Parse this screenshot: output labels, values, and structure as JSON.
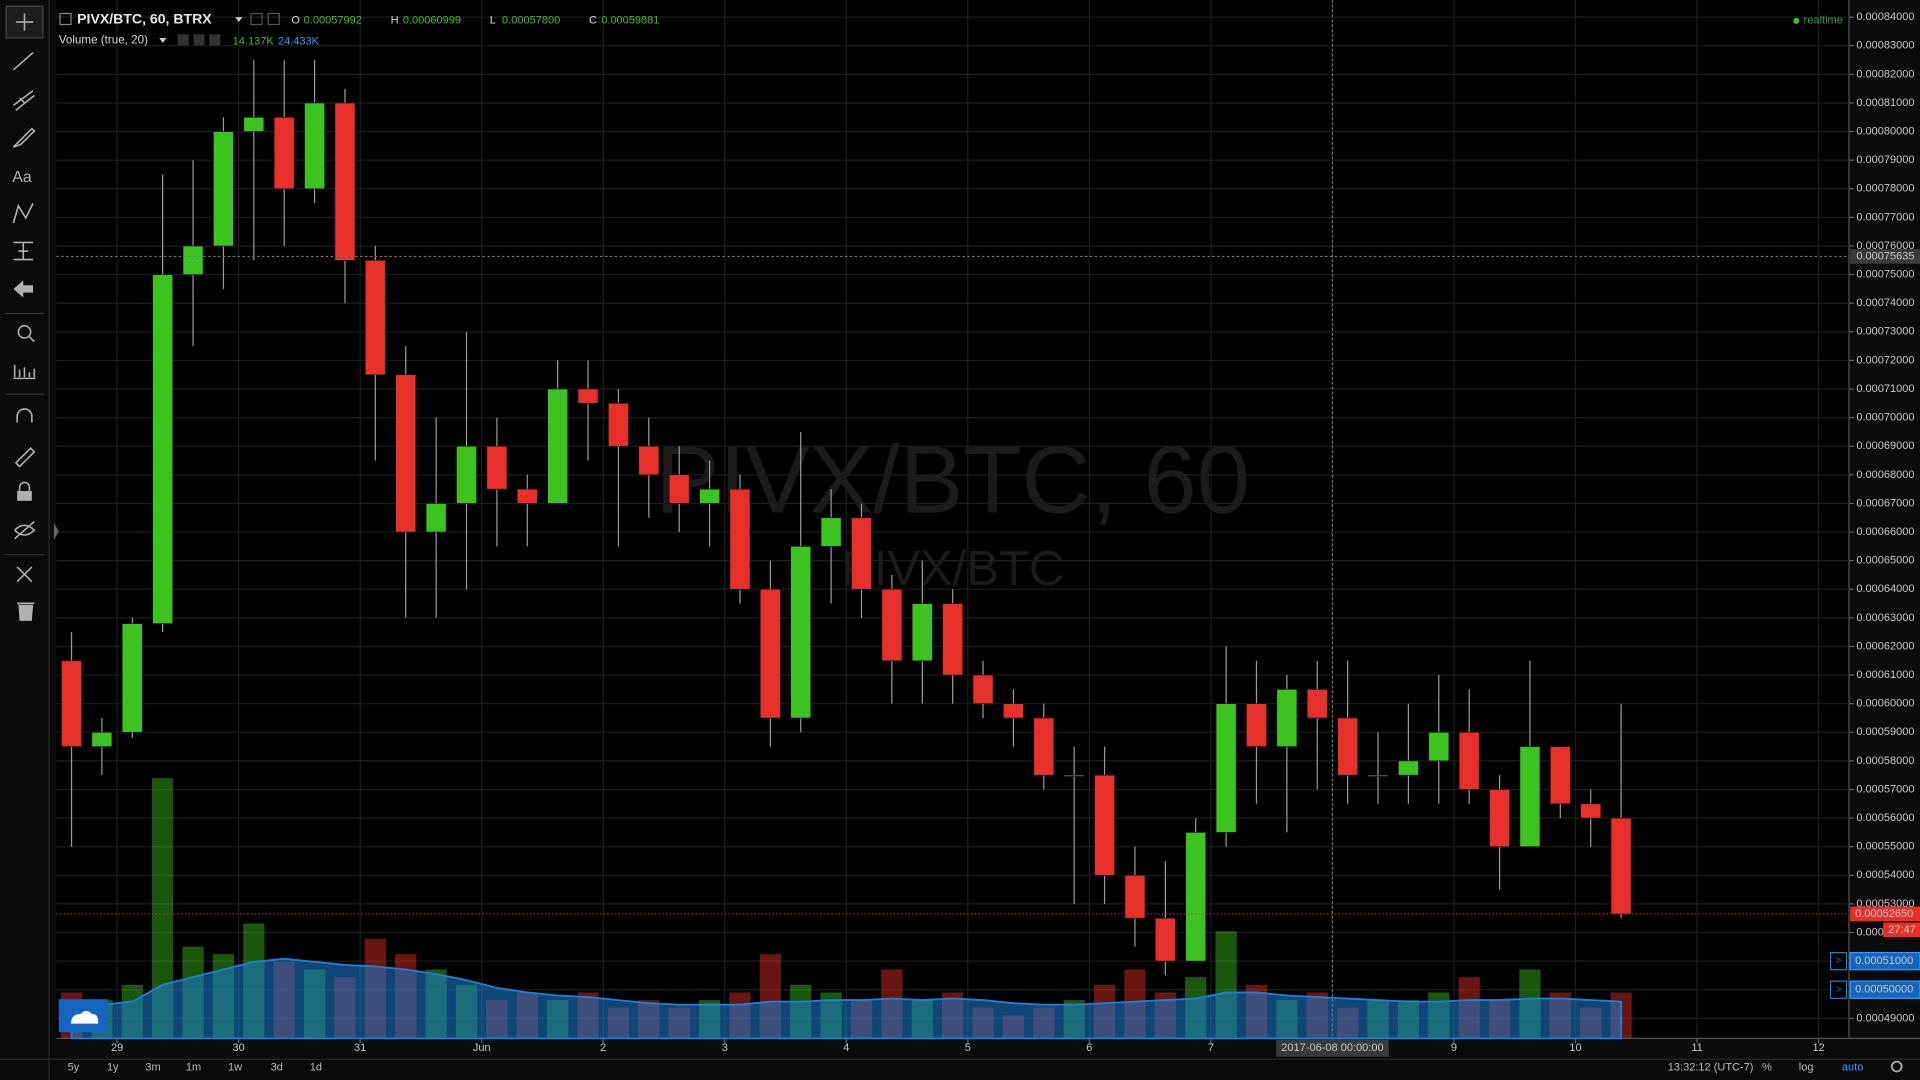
{
  "toolbar": {
    "timeframes": [
      "5y",
      "1y",
      "3m",
      "1m",
      "1w",
      "3d",
      "1d"
    ],
    "clock": "13:32:12 (UTC-7)",
    "options": [
      "%",
      "log",
      "auto"
    ]
  },
  "chart_data": {
    "type": "candlestick",
    "symbol": "PIVX/BTC, 60, BTRX",
    "watermark": "PIVX/BTC, 60",
    "watermark_sub": "PIVX/BTC",
    "status": "realtime",
    "ohlc": {
      "labels": [
        "O",
        "H",
        "L",
        "C"
      ],
      "values": [
        0.00057992,
        0.00060999,
        0.000578,
        0.00059881
      ],
      "value_labels": [
        "0.00057992",
        "0.00060999",
        "0.00057800",
        "0.00059881"
      ]
    },
    "volume_study": {
      "name": "Volume (true, 20)",
      "values": [
        14.137,
        24.433
      ],
      "value_labels": [
        "14.137K",
        "24.433K"
      ]
    },
    "up_color": "#3cc31f",
    "down_color": "#e8302b",
    "volume_ma_color": "#1e7fd6",
    "x": [
      "2017-05-28 12:00",
      "2017-05-28 18:00",
      "2017-05-29 00:00",
      "2017-05-29 06:00",
      "2017-05-29 12:00",
      "2017-05-29 18:00",
      "2017-05-30 00:00",
      "2017-05-30 06:00",
      "2017-05-30 12:00",
      "2017-05-30 18:00",
      "2017-05-31 00:00",
      "2017-05-31 06:00",
      "2017-05-31 12:00",
      "2017-05-31 18:00",
      "2017-06-01 00:00",
      "2017-06-01 06:00",
      "2017-06-01 12:00",
      "2017-06-01 18:00",
      "2017-06-02 00:00",
      "2017-06-02 06:00",
      "2017-06-02 12:00",
      "2017-06-02 18:00",
      "2017-06-03 00:00",
      "2017-06-03 06:00",
      "2017-06-03 12:00",
      "2017-06-03 18:00",
      "2017-06-04 00:00",
      "2017-06-04 06:00",
      "2017-06-04 12:00",
      "2017-06-04 18:00",
      "2017-06-05 00:00",
      "2017-06-05 06:00",
      "2017-06-05 12:00",
      "2017-06-05 18:00",
      "2017-06-06 00:00",
      "2017-06-06 06:00",
      "2017-06-06 12:00",
      "2017-06-06 18:00",
      "2017-06-07 00:00",
      "2017-06-07 06:00",
      "2017-06-07 12:00",
      "2017-06-07 18:00",
      "2017-06-08 00:00",
      "2017-06-08 06:00",
      "2017-06-08 12:00",
      "2017-06-08 18:00",
      "2017-06-09 00:00",
      "2017-06-09 06:00",
      "2017-06-09 12:00",
      "2017-06-09 18:00",
      "2017-06-10 00:00",
      "2017-06-10 06:00"
    ],
    "open": [
      0.000615,
      0.000585,
      0.00059,
      0.000628,
      0.00075,
      0.00076,
      0.0008,
      0.000805,
      0.00078,
      0.00081,
      0.000755,
      0.000715,
      0.00066,
      0.00067,
      0.00069,
      0.000675,
      0.00067,
      0.00071,
      0.000705,
      0.00069,
      0.00068,
      0.00067,
      0.000675,
      0.00064,
      0.000595,
      0.000655,
      0.000665,
      0.00064,
      0.000615,
      0.000635,
      0.00061,
      0.0006,
      0.000595,
      0.000575,
      0.000575,
      0.00054,
      0.000525,
      0.00051,
      0.000555,
      0.0006,
      0.000585,
      0.000605,
      0.000595,
      0.000575,
      0.000575,
      0.00058,
      0.00059,
      0.00057,
      0.00055,
      0.000585,
      0.000565,
      0.00056
    ],
    "high": [
      0.000625,
      0.000595,
      0.00063,
      0.000785,
      0.00079,
      0.000805,
      0.000825,
      0.000825,
      0.000825,
      0.000815,
      0.00076,
      0.000725,
      0.0007,
      0.00073,
      0.0007,
      0.00068,
      0.00072,
      0.00072,
      0.00071,
      0.0007,
      0.00069,
      0.000685,
      0.00068,
      0.00065,
      0.000695,
      0.000675,
      0.00067,
      0.000645,
      0.00065,
      0.00064,
      0.000615,
      0.000605,
      0.0006,
      0.000585,
      0.000585,
      0.00055,
      0.000545,
      0.00056,
      0.00062,
      0.000615,
      0.00061,
      0.000615,
      0.000615,
      0.00059,
      0.0006,
      0.00061,
      0.000605,
      0.000575,
      0.000615,
      0.000585,
      0.00057,
      0.0006
    ],
    "low": [
      0.00055,
      0.000575,
      0.000588,
      0.000625,
      0.000725,
      0.000745,
      0.000755,
      0.00076,
      0.000775,
      0.00074,
      0.000685,
      0.00063,
      0.00063,
      0.00064,
      0.000655,
      0.000655,
      0.00067,
      0.000685,
      0.000655,
      0.000665,
      0.00066,
      0.000655,
      0.000635,
      0.000585,
      0.00059,
      0.000635,
      0.00063,
      0.0006,
      0.0006,
      0.0006,
      0.000595,
      0.000585,
      0.00057,
      0.00053,
      0.00053,
      0.000515,
      0.000505,
      0.00051,
      0.00055,
      0.000565,
      0.000555,
      0.00057,
      0.000565,
      0.000565,
      0.000565,
      0.000565,
      0.000565,
      0.000535,
      0.00055,
      0.00056,
      0.00055,
      0.000525
    ],
    "close": [
      0.000585,
      0.00059,
      0.000628,
      0.00075,
      0.00076,
      0.0008,
      0.000805,
      0.00078,
      0.00081,
      0.000755,
      0.000715,
      0.00066,
      0.00067,
      0.00069,
      0.000675,
      0.00067,
      0.00071,
      0.000705,
      0.00069,
      0.00068,
      0.00067,
      0.000675,
      0.00064,
      0.000595,
      0.000655,
      0.000665,
      0.00064,
      0.000615,
      0.000635,
      0.00061,
      0.0006,
      0.000595,
      0.000575,
      0.000575,
      0.00054,
      0.000525,
      0.00051,
      0.000555,
      0.0006,
      0.000585,
      0.000605,
      0.000595,
      0.000575,
      0.000575,
      0.00058,
      0.00059,
      0.00057,
      0.00055,
      0.000585,
      0.000565,
      0.00056,
      0.0005265
    ],
    "volume": [
      30,
      25,
      35,
      170,
      60,
      55,
      75,
      50,
      45,
      40,
      65,
      55,
      45,
      35,
      25,
      30,
      25,
      30,
      20,
      25,
      20,
      25,
      30,
      55,
      35,
      30,
      25,
      45,
      25,
      30,
      20,
      15,
      20,
      25,
      35,
      45,
      30,
      40,
      70,
      35,
      25,
      30,
      20,
      25,
      25,
      30,
      40,
      25,
      45,
      30,
      20,
      30
    ],
    "volume_ma": [
      22,
      22,
      24,
      35,
      40,
      45,
      50,
      52,
      50,
      48,
      47,
      45,
      42,
      38,
      33,
      30,
      28,
      27,
      25,
      23,
      22,
      22,
      22,
      24,
      24,
      25,
      25,
      26,
      25,
      26,
      25,
      23,
      22,
      22,
      23,
      24,
      25,
      26,
      30,
      30,
      28,
      27,
      26,
      25,
      24,
      24,
      25,
      25,
      26,
      26,
      25,
      24
    ],
    "xlim": [
      "2017-05-28 12:00",
      "2017-06-12 06:00"
    ],
    "xticks": [
      {
        "value": "2017-05-29 00:00",
        "label": "29"
      },
      {
        "value": "2017-05-30 00:00",
        "label": "30"
      },
      {
        "value": "2017-05-31 00:00",
        "label": "31"
      },
      {
        "value": "2017-06-01 00:00",
        "label": "Jun"
      },
      {
        "value": "2017-06-02 00:00",
        "label": "2"
      },
      {
        "value": "2017-06-03 00:00",
        "label": "3"
      },
      {
        "value": "2017-06-04 00:00",
        "label": "4"
      },
      {
        "value": "2017-06-05 00:00",
        "label": "5"
      },
      {
        "value": "2017-06-06 00:00",
        "label": "6"
      },
      {
        "value": "2017-06-07 00:00",
        "label": "7"
      },
      {
        "value": "2017-06-08 00:00",
        "label": "8"
      },
      {
        "value": "2017-06-09 00:00",
        "label": "9"
      },
      {
        "value": "2017-06-10 00:00",
        "label": "10"
      },
      {
        "value": "2017-06-11 00:00",
        "label": "11"
      },
      {
        "value": "2017-06-12 00:00",
        "label": "12"
      }
    ],
    "ylim": [
      0.000483,
      0.000846
    ],
    "yticks": [
      {
        "value": 0.00049,
        "label": "0.00049000"
      },
      {
        "value": 0.0005,
        "label": "0.00050000"
      },
      {
        "value": 0.00051,
        "label": "0.00051000"
      },
      {
        "value": 0.00052,
        "label": "0.00052000"
      },
      {
        "value": 0.00053,
        "label": "0.00053000"
      },
      {
        "value": 0.00054,
        "label": "0.00054000"
      },
      {
        "value": 0.00055,
        "label": "0.00055000"
      },
      {
        "value": 0.00056,
        "label": "0.00056000"
      },
      {
        "value": 0.00057,
        "label": "0.00057000"
      },
      {
        "value": 0.00058,
        "label": "0.00058000"
      },
      {
        "value": 0.00059,
        "label": "0.00059000"
      },
      {
        "value": 0.0006,
        "label": "0.00060000"
      },
      {
        "value": 0.00061,
        "label": "0.00061000"
      },
      {
        "value": 0.00062,
        "label": "0.00062000"
      },
      {
        "value": 0.00063,
        "label": "0.00063000"
      },
      {
        "value": 0.00064,
        "label": "0.00064000"
      },
      {
        "value": 0.00065,
        "label": "0.00065000"
      },
      {
        "value": 0.00066,
        "label": "0.00066000"
      },
      {
        "value": 0.00067,
        "label": "0.00067000"
      },
      {
        "value": 0.00068,
        "label": "0.00068000"
      },
      {
        "value": 0.00069,
        "label": "0.00069000"
      },
      {
        "value": 0.0007,
        "label": "0.00070000"
      },
      {
        "value": 0.00071,
        "label": "0.00071000"
      },
      {
        "value": 0.00072,
        "label": "0.00072000"
      },
      {
        "value": 0.00073,
        "label": "0.00073000"
      },
      {
        "value": 0.00074,
        "label": "0.00074000"
      },
      {
        "value": 0.00075,
        "label": "0.00075000"
      },
      {
        "value": 0.00076,
        "label": "0.00076000"
      },
      {
        "value": 0.00077,
        "label": "0.00077000"
      },
      {
        "value": 0.00078,
        "label": "0.00078000"
      },
      {
        "value": 0.00079,
        "label": "0.00079000"
      },
      {
        "value": 0.0008,
        "label": "0.00080000"
      },
      {
        "value": 0.00081,
        "label": "0.00081000"
      },
      {
        "value": 0.00082,
        "label": "0.00082000"
      },
      {
        "value": 0.00083,
        "label": "0.00083000"
      },
      {
        "value": 0.00084,
        "label": "0.00084000"
      }
    ],
    "y2lim": [
      0,
      200
    ],
    "grid": true,
    "crosshair": {
      "x": "2017-06-08 00:00",
      "x_label": "2017-06-08 00:00:00",
      "y": 0.00075635,
      "y_label": "0.00075635"
    },
    "last_price": {
      "value": 0.0005265,
      "label": "0.00052650",
      "countdown": "27:47"
    },
    "price_lines": [
      {
        "value": 0.00051,
        "label": "0.00051000"
      },
      {
        "value": 0.0005,
        "label": "0.00050000"
      }
    ]
  }
}
